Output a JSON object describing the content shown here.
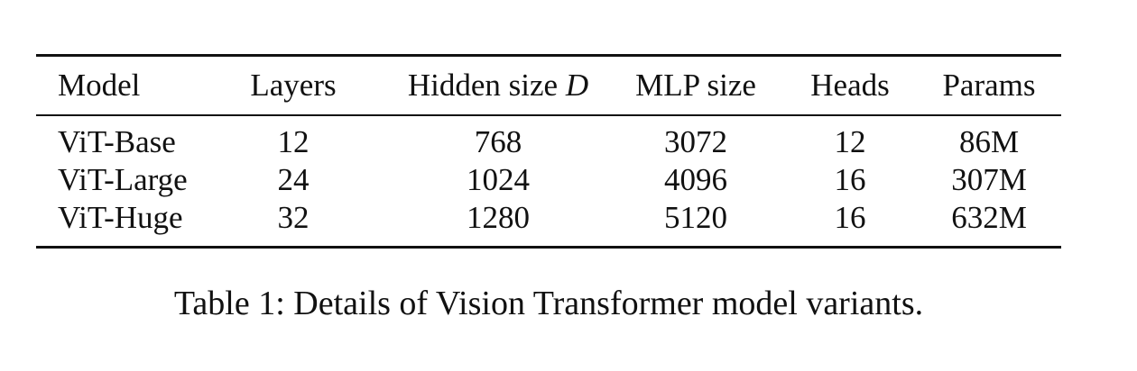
{
  "table": {
    "headers": {
      "model": "Model",
      "layers": "Layers",
      "hidden_size": "Hidden size ",
      "hidden_size_symbol": "D",
      "mlp_size": "MLP size",
      "heads": "Heads",
      "params": "Params"
    },
    "rows": [
      {
        "model": "ViT-Base",
        "layers": "12",
        "hidden_size": "768",
        "mlp_size": "3072",
        "heads": "12",
        "params": "86M"
      },
      {
        "model": "ViT-Large",
        "layers": "24",
        "hidden_size": "1024",
        "mlp_size": "4096",
        "heads": "16",
        "params": "307M"
      },
      {
        "model": "ViT-Huge",
        "layers": "32",
        "hidden_size": "1280",
        "mlp_size": "5120",
        "heads": "16",
        "params": "632M"
      }
    ]
  },
  "caption": "Table 1: Details of Vision Transformer model variants."
}
